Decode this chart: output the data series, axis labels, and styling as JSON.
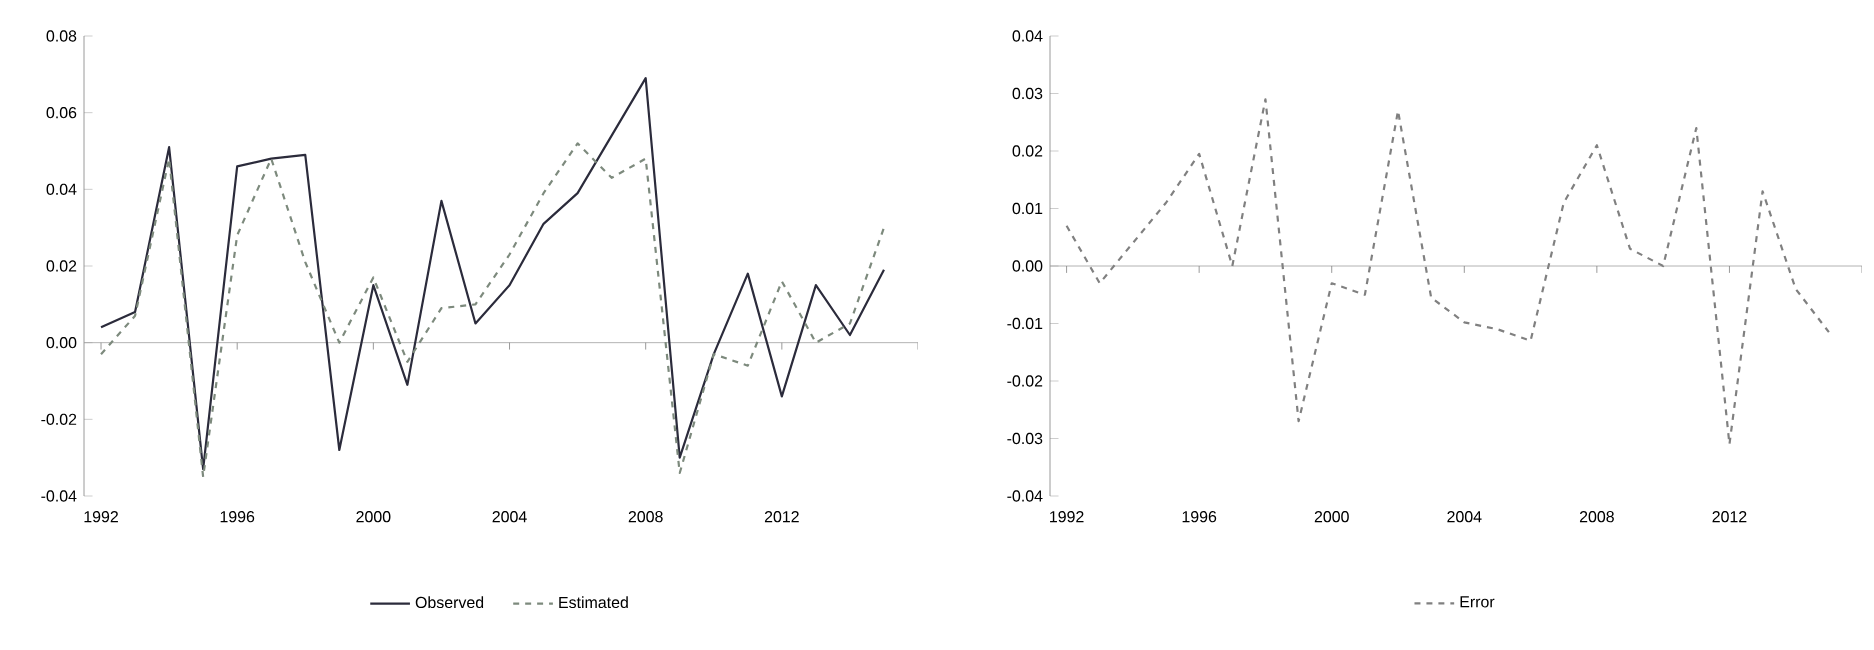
{
  "chart_data": [
    {
      "type": "line",
      "x": [
        1992,
        1993,
        1994,
        1995,
        1996,
        1997,
        1998,
        1999,
        2000,
        2001,
        2002,
        2003,
        2004,
        2005,
        2006,
        2007,
        2008,
        2009,
        2010,
        2011,
        2012,
        2013,
        2014,
        2015
      ],
      "series": [
        {
          "name": "Observed",
          "color": "#2b2b3b",
          "line_style": "solid",
          "values": [
            0.004,
            0.008,
            0.051,
            -0.033,
            0.046,
            0.048,
            0.049,
            -0.028,
            0.015,
            -0.011,
            0.037,
            0.005,
            0.015,
            0.031,
            0.039,
            0.054,
            0.069,
            -0.03,
            -0.003,
            0.018,
            -0.014,
            0.015,
            0.002,
            0.019
          ]
        },
        {
          "name": "Estimated",
          "color": "#7d8a7d",
          "line_style": "dashed",
          "values": [
            -0.003,
            0.007,
            0.048,
            -0.035,
            0.028,
            0.048,
            0.021,
            0.0,
            0.017,
            -0.005,
            0.009,
            0.01,
            0.023,
            0.039,
            0.052,
            0.043,
            0.048,
            -0.034,
            -0.003,
            -0.006,
            0.016,
            0.0,
            0.005,
            0.03
          ]
        }
      ],
      "xlim": [
        1991.5,
        2016
      ],
      "xticks": [
        1992,
        1996,
        2000,
        2004,
        2008,
        2012,
        {
          "value": 2016,
          "label": null
        }
      ],
      "ylim": [
        -0.04,
        0.08
      ],
      "yticks": [
        {
          "value": -0.04,
          "label": "-0.04"
        },
        {
          "value": -0.02,
          "label": "-0.02"
        },
        {
          "value": 0,
          "label": "0.00"
        },
        {
          "value": 0.02,
          "label": "0.02"
        },
        {
          "value": 0.04,
          "label": "0.04"
        },
        {
          "value": 0.06,
          "label": "0.06"
        },
        {
          "value": 0.08,
          "label": "0.08"
        }
      ],
      "ref_lines": [
        {
          "axis": "y",
          "value": 0,
          "color": "#a0a0a0"
        }
      ],
      "legend": "bottom",
      "grid": false,
      "marker": "none"
    },
    {
      "type": "line",
      "x": [
        1992,
        1993,
        1994,
        1995,
        1996,
        1997,
        1998,
        1999,
        2000,
        2001,
        2002,
        2003,
        2004,
        2005,
        2006,
        2007,
        2008,
        2009,
        2010,
        2011,
        2012,
        2013,
        2014,
        2015
      ],
      "series": [
        {
          "name": "Error",
          "color": "#808080",
          "line_style": "dashed",
          "values": [
            0.007,
            -0.003,
            0.004,
            0.011,
            0.0195,
            0.0,
            0.029,
            -0.027,
            -0.003,
            -0.005,
            0.027,
            -0.0055,
            -0.0098,
            -0.011,
            -0.013,
            0.011,
            0.021,
            0.003,
            0.0,
            0.024,
            -0.031,
            0.013,
            -0.004,
            -0.0115
          ]
        }
      ],
      "xlim": [
        1991.5,
        2016
      ],
      "xticks": [
        1992,
        1996,
        2000,
        2004,
        2008,
        2012,
        {
          "value": 2016,
          "label": null
        }
      ],
      "ylim": [
        -0.04,
        0.04
      ],
      "yticks": [
        {
          "value": -0.04,
          "label": "-0.04"
        },
        {
          "value": -0.03,
          "label": "-0.03"
        },
        {
          "value": -0.02,
          "label": "-0.02"
        },
        {
          "value": -0.01,
          "label": "-0.01"
        },
        {
          "value": 0,
          "label": "0.00"
        },
        {
          "value": 0.01,
          "label": "0.01"
        },
        {
          "value": 0.02,
          "label": "0.02"
        },
        {
          "value": 0.03,
          "label": "0.03"
        },
        {
          "value": 0.04,
          "label": "0.04"
        }
      ],
      "ref_lines": [
        {
          "axis": "y",
          "value": 0,
          "color": "#a0a0a0"
        }
      ],
      "legend": "bottom",
      "grid": false,
      "marker": "none"
    }
  ]
}
